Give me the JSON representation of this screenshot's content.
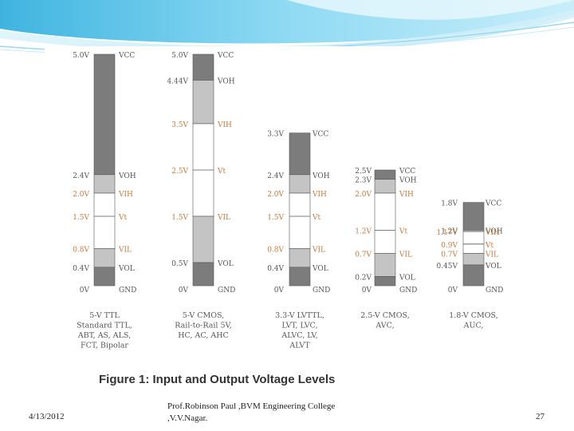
{
  "figure": {
    "caption": "Figure 1: Input and Output Voltage Levels",
    "columns": [
      {
        "id": "5v-ttl",
        "title_lines": [
          "5-V TTL",
          "Standard TTL,",
          "ABT, AS, ALS,",
          "FCT, Bipolar"
        ],
        "vmax": 5.0,
        "supply_label": "5.0V",
        "supply_name": "VCC",
        "gnd_label": "0V",
        "gnd_name": "GND",
        "levels": [
          {
            "name": "VOH",
            "label": "2.4V",
            "v": 2.4
          },
          {
            "name": "VIH",
            "label": "2.0V",
            "v": 2.0
          },
          {
            "name": "Vt",
            "label": "1.5V",
            "v": 1.5
          },
          {
            "name": "VIL",
            "label": "0.8V",
            "v": 0.8
          },
          {
            "name": "VOL",
            "label": "0.4V",
            "v": 0.4
          }
        ]
      },
      {
        "id": "5v-cmos",
        "title_lines": [
          "5-V CMOS,",
          "Rail-to-Rail 5V,",
          "HC, AC, AHC"
        ],
        "vmax": 5.0,
        "supply_label": "5.0V",
        "supply_name": "VCC",
        "gnd_label": "0V",
        "gnd_name": "GND",
        "levels": [
          {
            "name": "VOH",
            "label": "4.44V",
            "v": 4.44
          },
          {
            "name": "VIH",
            "label": "3.5V",
            "v": 3.5
          },
          {
            "name": "Vt",
            "label": "2.5V",
            "v": 2.5
          },
          {
            "name": "VIL",
            "label": "1.5V",
            "v": 1.5
          },
          {
            "name": "VOL",
            "label": "0.5V",
            "v": 0.5
          }
        ]
      },
      {
        "id": "3.3v-lvttl",
        "title_lines": [
          "3.3-V LVTTL,",
          "LVT, LVC,",
          "ALVC, LV,",
          "ALVT"
        ],
        "vmax": 3.3,
        "supply_label": "3.3V",
        "supply_name": "VCC",
        "gnd_label": "0V",
        "gnd_name": "GND",
        "levels": [
          {
            "name": "VOH",
            "label": "2.4V",
            "v": 2.4
          },
          {
            "name": "VIH",
            "label": "2.0V",
            "v": 2.0
          },
          {
            "name": "Vt",
            "label": "1.5V",
            "v": 1.5
          },
          {
            "name": "VIL",
            "label": "0.8V",
            "v": 0.8
          },
          {
            "name": "VOL",
            "label": "0.4V",
            "v": 0.4
          }
        ]
      },
      {
        "id": "2.5v-cmos",
        "title_lines": [
          "2.5-V CMOS,",
          "AVC,"
        ],
        "vmax": 2.5,
        "supply_label": "2.5V",
        "supply_name": "VCC",
        "gnd_label": "0V",
        "gnd_name": "GND",
        "levels": [
          {
            "name": "VOH",
            "label": "2.3V",
            "v": 2.3
          },
          {
            "name": "VIH",
            "label": "2.0V",
            "v": 2.0
          },
          {
            "name": "Vt",
            "label": "1.2V",
            "v": 1.2
          },
          {
            "name": "VIL",
            "label": "0.7V",
            "v": 0.7
          },
          {
            "name": "VOL",
            "label": "0.2V",
            "v": 0.2
          }
        ]
      },
      {
        "id": "1.8v-cmos",
        "title_lines": [
          "1.8-V CMOS,",
          "AUC,"
        ],
        "vmax": 1.8,
        "supply_label": "1.8V",
        "supply_name": "VCC",
        "gnd_label": "0V",
        "gnd_name": "GND",
        "levels": [
          {
            "name": "VOH",
            "label": "1.2V",
            "v": 1.2
          },
          {
            "name": "VIH",
            "label": "1.17V",
            "v": 1.17
          },
          {
            "name": "Vt",
            "label": "0.9V",
            "v": 0.9
          },
          {
            "name": "VIL",
            "label": "0.7V",
            "v": 0.7
          },
          {
            "name": "VOL",
            "label": "0.45V",
            "v": 0.45
          }
        ]
      }
    ],
    "colors": {
      "output_band": "#7c7c7c",
      "input_band": "#c4c4c4",
      "undefined_band": "#ffffff",
      "outline": "#555555",
      "label_orange": "#c8783a",
      "label_gray": "#555555",
      "caption": "#333333"
    }
  },
  "footer": {
    "date": "4/13/2012",
    "author_line1": "Prof.Robinson Paul ,BVM Engineering College",
    "author_line2": ",V.V.Nagar.",
    "page": "27"
  },
  "theme": {
    "banner_light": "#d6f1fb",
    "banner_mid": "#7fd3f0",
    "banner_dark": "#2aa4d5"
  }
}
